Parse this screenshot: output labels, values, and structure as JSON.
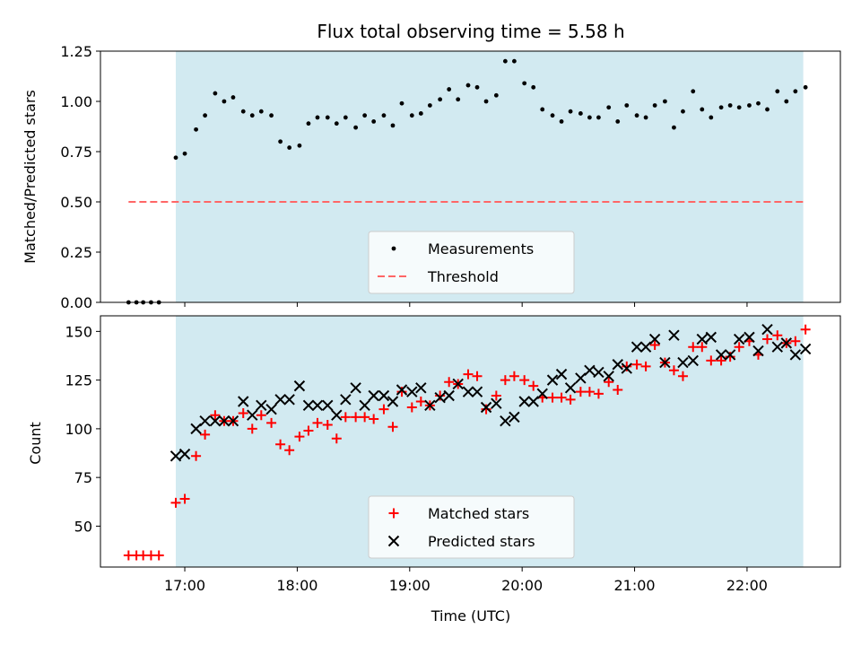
{
  "chart_data": {
    "title": "Flux total observing time = 5.58 h",
    "xlabel": "Time (UTC)",
    "x_unit": "hours UTC",
    "xlim": [
      16.25,
      22.83
    ],
    "xticks": [
      17,
      18,
      19,
      20,
      21,
      22
    ],
    "xtick_labels": [
      "17:00",
      "18:00",
      "19:00",
      "20:00",
      "21:00",
      "22:00"
    ],
    "shaded_interval": [
      16.92,
      22.5
    ],
    "colors": {
      "shade": "#add8e6",
      "threshold": "#ff6666",
      "matched": "#ff0000",
      "predicted": "#000000",
      "measurement": "#000000"
    },
    "panels": [
      {
        "type": "scatter",
        "ylabel": "Matched/Predicted stars",
        "ylim": [
          0,
          1.25
        ],
        "yticks": [
          0.0,
          0.25,
          0.5,
          0.75,
          1.0,
          1.25
        ],
        "ytick_labels": [
          "0.00",
          "0.25",
          "0.50",
          "0.75",
          "1.00",
          "1.25"
        ],
        "threshold": {
          "value": 0.5,
          "x_range": [
            16.5,
            22.5
          ]
        },
        "legend": [
          "Measurements",
          "Threshold"
        ],
        "series": [
          {
            "name": "Measurements",
            "x": [
              16.5,
              16.57,
              16.63,
              16.7,
              16.77,
              16.92,
              17.0,
              17.1,
              17.18,
              17.27,
              17.35,
              17.43,
              17.52,
              17.6,
              17.68,
              17.77,
              17.85,
              17.93,
              18.02,
              18.1,
              18.18,
              18.27,
              18.35,
              18.43,
              18.52,
              18.6,
              18.68,
              18.77,
              18.85,
              18.93,
              19.02,
              19.1,
              19.18,
              19.27,
              19.35,
              19.43,
              19.52,
              19.6,
              19.68,
              19.77,
              19.85,
              19.93,
              20.02,
              20.1,
              20.18,
              20.27,
              20.35,
              20.43,
              20.52,
              20.6,
              20.68,
              20.77,
              20.85,
              20.93,
              21.02,
              21.1,
              21.18,
              21.27,
              21.35,
              21.43,
              21.52,
              21.6,
              21.68,
              21.77,
              21.85,
              21.93,
              22.02,
              22.1,
              22.18,
              22.27,
              22.35,
              22.43,
              22.52
            ],
            "y": [
              0,
              0,
              0,
              0,
              0,
              0.72,
              0.74,
              0.86,
              0.93,
              1.04,
              1.0,
              1.02,
              0.95,
              0.93,
              0.95,
              0.93,
              0.8,
              0.77,
              0.78,
              0.89,
              0.92,
              0.92,
              0.89,
              0.92,
              0.87,
              0.93,
              0.9,
              0.93,
              0.88,
              0.99,
              0.93,
              0.94,
              0.98,
              1.01,
              1.06,
              1.01,
              1.08,
              1.07,
              1.0,
              1.03,
              1.2,
              1.2,
              1.09,
              1.07,
              0.96,
              0.93,
              0.9,
              0.95,
              0.94,
              0.92,
              0.92,
              0.97,
              0.9,
              0.98,
              0.93,
              0.92,
              0.98,
              1.0,
              0.87,
              0.95,
              1.05,
              0.96,
              0.92,
              0.97,
              0.98,
              0.97,
              0.98,
              0.99,
              0.96,
              1.05,
              1.0,
              1.05,
              1.07
            ]
          }
        ]
      },
      {
        "type": "scatter",
        "ylabel": "Count",
        "ylim": [
          29,
          158
        ],
        "yticks": [
          50,
          75,
          100,
          125,
          150
        ],
        "ytick_labels": [
          "50",
          "75",
          "100",
          "125",
          "150"
        ],
        "legend": [
          "Matched stars",
          "Predicted stars"
        ],
        "series": [
          {
            "name": "Matched stars",
            "marker": "plus",
            "x": [
              16.5,
              16.57,
              16.63,
              16.7,
              16.77,
              16.92,
              17.0,
              17.1,
              17.18,
              17.27,
              17.35,
              17.43,
              17.52,
              17.6,
              17.68,
              17.77,
              17.85,
              17.93,
              18.02,
              18.1,
              18.18,
              18.27,
              18.35,
              18.43,
              18.52,
              18.6,
              18.68,
              18.77,
              18.85,
              18.93,
              19.02,
              19.1,
              19.18,
              19.27,
              19.35,
              19.43,
              19.52,
              19.6,
              19.68,
              19.77,
              19.85,
              19.93,
              20.02,
              20.1,
              20.18,
              20.27,
              20.35,
              20.43,
              20.52,
              20.6,
              20.68,
              20.77,
              20.85,
              20.93,
              21.02,
              21.1,
              21.18,
              21.27,
              21.35,
              21.43,
              21.52,
              21.6,
              21.68,
              21.77,
              21.85,
              21.93,
              22.02,
              22.1,
              22.18,
              22.27,
              22.35,
              22.43,
              22.52
            ],
            "y": [
              35,
              35,
              35,
              35,
              35,
              62,
              64,
              86,
              97,
              107,
              104,
              104,
              108,
              100,
              107,
              103,
              92,
              89,
              96,
              99,
              103,
              102,
              95,
              106,
              106,
              106,
              105,
              110,
              101,
              119,
              111,
              114,
              112,
              117,
              124,
              123,
              128,
              127,
              110,
              117,
              125,
              127,
              125,
              122,
              116,
              116,
              116,
              115,
              119,
              119,
              118,
              124,
              120,
              132,
              133,
              132,
              143,
              134,
              130,
              127,
              142,
              142,
              135,
              135,
              137,
              142,
              145,
              138,
              146,
              148,
              144,
              145,
              151
            ]
          },
          {
            "name": "Predicted stars",
            "marker": "x",
            "x": [
              16.92,
              17.0,
              17.1,
              17.18,
              17.27,
              17.35,
              17.43,
              17.52,
              17.6,
              17.68,
              17.77,
              17.85,
              17.93,
              18.02,
              18.1,
              18.18,
              18.27,
              18.35,
              18.43,
              18.52,
              18.6,
              18.68,
              18.77,
              18.85,
              18.93,
              19.02,
              19.1,
              19.18,
              19.27,
              19.35,
              19.43,
              19.52,
              19.6,
              19.68,
              19.77,
              19.85,
              19.93,
              20.02,
              20.1,
              20.18,
              20.27,
              20.35,
              20.43,
              20.52,
              20.6,
              20.68,
              20.77,
              20.85,
              20.93,
              21.02,
              21.1,
              21.18,
              21.27,
              21.35,
              21.43,
              21.52,
              21.6,
              21.68,
              21.77,
              21.85,
              21.93,
              22.02,
              22.1,
              22.18,
              22.27,
              22.35,
              22.43,
              22.52
            ],
            "y": [
              86,
              87,
              100,
              104,
              104,
              104,
              104,
              114,
              107,
              112,
              110,
              115,
              115,
              122,
              112,
              112,
              112,
              107,
              115,
              121,
              112,
              117,
              117,
              114,
              120,
              119,
              121,
              112,
              116,
              117,
              123,
              119,
              119,
              111,
              113,
              104,
              106,
              114,
              114,
              118,
              125,
              128,
              121,
              126,
              130,
              129,
              127,
              133,
              131,
              142,
              142,
              146,
              134,
              148,
              134,
              135,
              146,
              147,
              138,
              138,
              146,
              147,
              140,
              151,
              142,
              144,
              138,
              141
            ]
          }
        ]
      }
    ]
  }
}
